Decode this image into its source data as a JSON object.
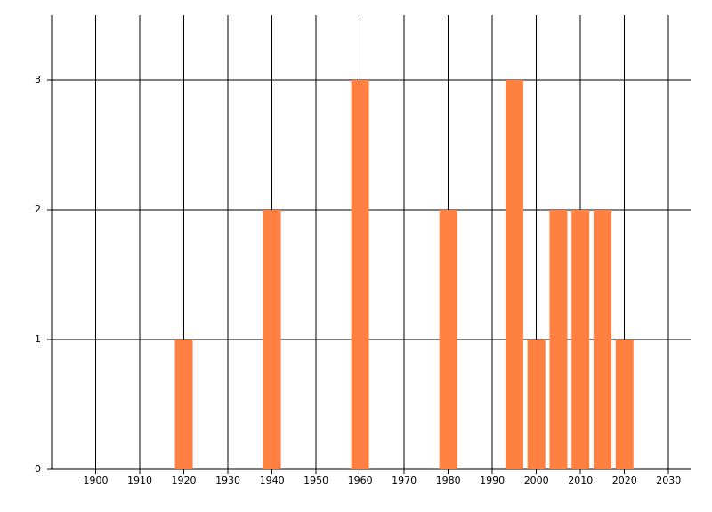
{
  "chart_data": {
    "type": "bar",
    "x": [
      1920,
      1940,
      1960,
      1980,
      1995,
      2000,
      2005,
      2010,
      2015,
      2020
    ],
    "values": [
      1,
      2,
      3,
      2,
      3,
      1,
      2,
      2,
      2,
      1
    ],
    "color": "#ff8040",
    "xlim": [
      1890,
      2035
    ],
    "xticks": [
      1900,
      1910,
      1920,
      1930,
      1940,
      1950,
      1960,
      1970,
      1980,
      1990,
      2000,
      2010,
      2020,
      2030
    ],
    "ylim": [
      0,
      3.5
    ],
    "yticks": [
      0,
      1,
      2,
      3
    ],
    "grid": true
  }
}
